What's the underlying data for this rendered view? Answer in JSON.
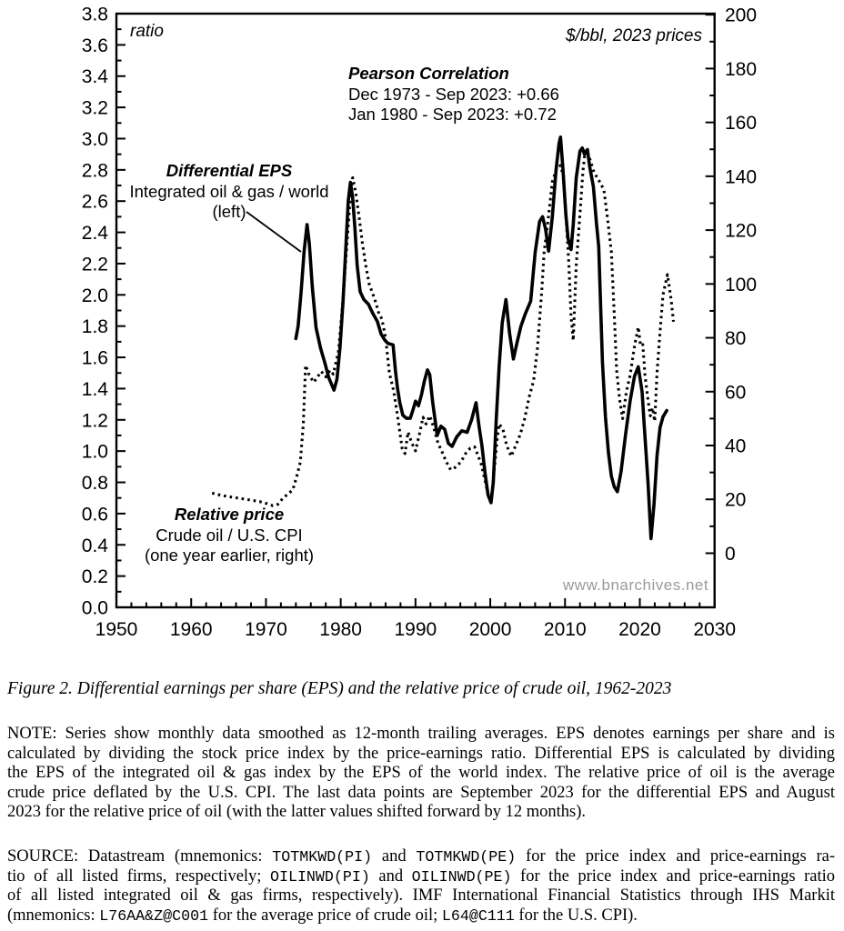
{
  "page": {
    "background": "#ffffff",
    "text_color": "#000000"
  },
  "chart_data": {
    "type": "line",
    "grid": false,
    "legend": "none",
    "x_axis": {
      "min": 1950,
      "max": 2030,
      "major_step": 10,
      "minor_step": 2,
      "tick_labels": [
        1950,
        1960,
        1970,
        1980,
        1990,
        2000,
        2010,
        2020,
        2030
      ]
    },
    "left_axis": {
      "unit_label": "ratio",
      "min": 0.0,
      "max": 3.8,
      "major_step": 0.2,
      "minor_step": 0.1,
      "tick_labels": [
        0.0,
        0.2,
        0.4,
        0.6,
        0.8,
        1.0,
        1.2,
        1.4,
        1.6,
        1.8,
        2.0,
        2.2,
        2.4,
        2.6,
        2.8,
        3.0,
        3.2,
        3.4,
        3.6,
        3.8
      ]
    },
    "right_axis": {
      "unit_label": "$/bbl, 2023 prices",
      "tick_min": 0,
      "tick_max": 200,
      "major_step": 20,
      "minor_step": 10,
      "tick_labels": [
        0,
        20,
        40,
        60,
        80,
        100,
        120,
        140,
        160,
        180,
        200
      ],
      "frame_min": -20.1,
      "frame_max": 200.4
    },
    "series": [
      {
        "name": "Differential EPS",
        "axis": "left",
        "line_style": "solid",
        "color": "#000000",
        "points": [
          [
            1974.0,
            1.72
          ],
          [
            1974.3,
            1.8
          ],
          [
            1974.7,
            2.02
          ],
          [
            1975.1,
            2.28
          ],
          [
            1975.5,
            2.45
          ],
          [
            1975.8,
            2.33
          ],
          [
            1976.2,
            2.05
          ],
          [
            1976.7,
            1.79
          ],
          [
            1977.3,
            1.66
          ],
          [
            1977.9,
            1.56
          ],
          [
            1978.4,
            1.47
          ],
          [
            1979.1,
            1.39
          ],
          [
            1979.5,
            1.46
          ],
          [
            1979.9,
            1.66
          ],
          [
            1980.3,
            1.95
          ],
          [
            1980.7,
            2.32
          ],
          [
            1981.0,
            2.6
          ],
          [
            1981.3,
            2.72
          ],
          [
            1981.6,
            2.62
          ],
          [
            1981.9,
            2.42
          ],
          [
            1982.2,
            2.19
          ],
          [
            1982.6,
            2.02
          ],
          [
            1983.1,
            1.97
          ],
          [
            1983.7,
            1.94
          ],
          [
            1984.3,
            1.88
          ],
          [
            1984.9,
            1.83
          ],
          [
            1985.4,
            1.75
          ],
          [
            1985.9,
            1.71
          ],
          [
            1986.3,
            1.69
          ],
          [
            1987.0,
            1.68
          ],
          [
            1987.3,
            1.52
          ],
          [
            1987.6,
            1.4
          ],
          [
            1987.9,
            1.31
          ],
          [
            1988.3,
            1.23
          ],
          [
            1988.8,
            1.21
          ],
          [
            1989.3,
            1.21
          ],
          [
            1989.7,
            1.27
          ],
          [
            1990.0,
            1.32
          ],
          [
            1990.4,
            1.29
          ],
          [
            1990.8,
            1.36
          ],
          [
            1991.2,
            1.45
          ],
          [
            1991.6,
            1.52
          ],
          [
            1991.9,
            1.49
          ],
          [
            1992.3,
            1.31
          ],
          [
            1992.9,
            1.1
          ],
          [
            1993.4,
            1.16
          ],
          [
            1993.9,
            1.14
          ],
          [
            1994.4,
            1.05
          ],
          [
            1994.9,
            1.03
          ],
          [
            1995.5,
            1.09
          ],
          [
            1996.2,
            1.13
          ],
          [
            1996.9,
            1.12
          ],
          [
            1997.5,
            1.2
          ],
          [
            1998.1,
            1.31
          ],
          [
            1998.5,
            1.16
          ],
          [
            1998.9,
            1.03
          ],
          [
            1999.3,
            0.86
          ],
          [
            1999.7,
            0.72
          ],
          [
            2000.1,
            0.67
          ],
          [
            2000.4,
            0.8
          ],
          [
            2000.8,
            1.2
          ],
          [
            2001.2,
            1.55
          ],
          [
            2001.6,
            1.82
          ],
          [
            2002.1,
            1.97
          ],
          [
            2002.6,
            1.75
          ],
          [
            2003.1,
            1.59
          ],
          [
            2003.6,
            1.7
          ],
          [
            2004.1,
            1.8
          ],
          [
            2004.7,
            1.88
          ],
          [
            2005.4,
            1.96
          ],
          [
            2006.0,
            2.27
          ],
          [
            2006.6,
            2.47
          ],
          [
            2007.0,
            2.5
          ],
          [
            2007.4,
            2.42
          ],
          [
            2007.8,
            2.28
          ],
          [
            2008.3,
            2.5
          ],
          [
            2008.8,
            2.8
          ],
          [
            2009.2,
            2.97
          ],
          [
            2009.4,
            3.01
          ],
          [
            2009.7,
            2.82
          ],
          [
            2010.1,
            2.52
          ],
          [
            2010.4,
            2.36
          ],
          [
            2010.8,
            2.29
          ],
          [
            2011.1,
            2.45
          ],
          [
            2011.5,
            2.75
          ],
          [
            2012.0,
            2.92
          ],
          [
            2012.3,
            2.94
          ],
          [
            2012.6,
            2.9
          ],
          [
            2013.0,
            2.93
          ],
          [
            2013.3,
            2.82
          ],
          [
            2013.8,
            2.69
          ],
          [
            2014.2,
            2.46
          ],
          [
            2014.5,
            2.31
          ],
          [
            2015.0,
            1.57
          ],
          [
            2015.4,
            1.22
          ],
          [
            2015.8,
            0.99
          ],
          [
            2016.2,
            0.84
          ],
          [
            2016.6,
            0.77
          ],
          [
            2017.0,
            0.74
          ],
          [
            2017.5,
            0.87
          ],
          [
            2018.1,
            1.11
          ],
          [
            2018.7,
            1.32
          ],
          [
            2019.3,
            1.48
          ],
          [
            2019.8,
            1.54
          ],
          [
            2020.3,
            1.38
          ],
          [
            2020.6,
            1.16
          ],
          [
            2021.1,
            0.8
          ],
          [
            2021.5,
            0.44
          ],
          [
            2021.9,
            0.66
          ],
          [
            2022.3,
            0.97
          ],
          [
            2022.7,
            1.15
          ],
          [
            2023.1,
            1.22
          ],
          [
            2023.6,
            1.26
          ]
        ]
      },
      {
        "name": "Relative price",
        "axis": "right",
        "line_style": "dotted",
        "color": "#000000",
        "points": [
          [
            1962.8,
            22.3
          ],
          [
            1964.0,
            21.5
          ],
          [
            1965.5,
            20.8
          ],
          [
            1966.7,
            20.3
          ],
          [
            1968.0,
            19.7
          ],
          [
            1969.5,
            19.0
          ],
          [
            1970.9,
            17.7
          ],
          [
            1971.6,
            18.2
          ],
          [
            1972.4,
            20.9
          ],
          [
            1972.8,
            21.6
          ],
          [
            1973.6,
            23.6
          ],
          [
            1974.2,
            29.4
          ],
          [
            1974.6,
            33.8
          ],
          [
            1975.0,
            48.0
          ],
          [
            1975.3,
            69.8
          ],
          [
            1975.8,
            66.0
          ],
          [
            1976.4,
            63.5
          ],
          [
            1977.4,
            67.5
          ],
          [
            1978.0,
            65.5
          ],
          [
            1978.6,
            68.0
          ],
          [
            1979.0,
            66.5
          ],
          [
            1979.7,
            75.0
          ],
          [
            1980.3,
            94.0
          ],
          [
            1980.7,
            110.0
          ],
          [
            1981.2,
            129.0
          ],
          [
            1981.6,
            139.5
          ],
          [
            1982.0,
            134.0
          ],
          [
            1982.5,
            124.0
          ],
          [
            1982.9,
            115.0
          ],
          [
            1983.4,
            106.0
          ],
          [
            1983.8,
            100.0
          ],
          [
            1984.2,
            97.0
          ],
          [
            1984.7,
            93.0
          ],
          [
            1985.1,
            89.0
          ],
          [
            1985.5,
            87.0
          ],
          [
            1986.0,
            80.0
          ],
          [
            1986.5,
            67.0
          ],
          [
            1987.1,
            60.0
          ],
          [
            1987.6,
            51.0
          ],
          [
            1988.2,
            39.0
          ],
          [
            1988.6,
            37.0
          ],
          [
            1989.0,
            45.0
          ],
          [
            1989.5,
            41.0
          ],
          [
            1990.0,
            38.0
          ],
          [
            1990.5,
            44.0
          ],
          [
            1991.0,
            50.5
          ],
          [
            1991.4,
            48.0
          ],
          [
            1991.9,
            51.0
          ],
          [
            1992.4,
            47.0
          ],
          [
            1993.0,
            41.0
          ],
          [
            1993.5,
            38.0
          ],
          [
            1994.1,
            34.0
          ],
          [
            1994.7,
            31.0
          ],
          [
            1995.4,
            32.0
          ],
          [
            1996.1,
            34.0
          ],
          [
            1996.7,
            37.0
          ],
          [
            1997.3,
            39.0
          ],
          [
            1997.9,
            39.5
          ],
          [
            1998.4,
            36.0
          ],
          [
            1998.8,
            33.0
          ],
          [
            1999.3,
            27.0
          ],
          [
            1999.8,
            21.0
          ],
          [
            2000.1,
            19.0
          ],
          [
            2000.5,
            30.0
          ],
          [
            2000.9,
            42.0
          ],
          [
            2001.2,
            48.0
          ],
          [
            2001.7,
            46.0
          ],
          [
            2002.2,
            40.0
          ],
          [
            2002.8,
            36.0
          ],
          [
            2003.4,
            40.0
          ],
          [
            2004.0,
            44.0
          ],
          [
            2004.6,
            50.0
          ],
          [
            2005.2,
            58.0
          ],
          [
            2005.8,
            64.0
          ],
          [
            2006.3,
            76.0
          ],
          [
            2006.9,
            98.0
          ],
          [
            2007.2,
            112.0
          ],
          [
            2007.7,
            123.0
          ],
          [
            2008.3,
            138.0
          ],
          [
            2008.9,
            143.0
          ],
          [
            2009.4,
            144.0
          ],
          [
            2009.8,
            140.0
          ],
          [
            2010.2,
            122.0
          ],
          [
            2010.5,
            108.0
          ],
          [
            2010.8,
            88.0
          ],
          [
            2011.1,
            79.0
          ],
          [
            2011.5,
            107.0
          ],
          [
            2012.0,
            126.0
          ],
          [
            2012.4,
            142.0
          ],
          [
            2012.7,
            149.8
          ],
          [
            2013.0,
            149.0
          ],
          [
            2013.4,
            145.7
          ],
          [
            2013.9,
            141.3
          ],
          [
            2014.5,
            138.6
          ],
          [
            2015.2,
            135.0
          ],
          [
            2015.7,
            124.0
          ],
          [
            2016.2,
            112.0
          ],
          [
            2016.6,
            88.0
          ],
          [
            2016.9,
            68.0
          ],
          [
            2017.3,
            57.0
          ],
          [
            2017.7,
            50.0
          ],
          [
            2018.2,
            60.0
          ],
          [
            2018.7,
            66.0
          ],
          [
            2019.3,
            77.0
          ],
          [
            2019.8,
            84.0
          ],
          [
            2020.1,
            77.0
          ],
          [
            2020.4,
            77.5
          ],
          [
            2020.7,
            66.0
          ],
          [
            2021.1,
            57.0
          ],
          [
            2021.4,
            51.0
          ],
          [
            2021.7,
            54.0
          ],
          [
            2022.0,
            49.0
          ],
          [
            2022.3,
            67.0
          ],
          [
            2022.7,
            82.0
          ],
          [
            2023.1,
            96.0
          ],
          [
            2023.7,
            103.5
          ],
          [
            2024.2,
            94.0
          ],
          [
            2024.5,
            86.0
          ]
        ]
      }
    ],
    "annotations": {
      "pearson": {
        "title": "Pearson Correlation",
        "line1": "Dec 1973 - Sep 2023: +0.66",
        "line2": "Jan 1980 - Sep 2023: +0.72"
      },
      "series1_label": {
        "title": "Differential EPS",
        "line1": "Integrated oil & gas / world",
        "line2": "(left)"
      },
      "series2_label": {
        "title": "Relative price",
        "line1": "Crude oil / U.S. CPI",
        "line2": "(one year earlier, right)"
      },
      "watermark": "www.bnarchives.net",
      "watermark_color": "#9a9a9a"
    }
  },
  "caption": "Figure 2. Differential earnings per share (EPS) and the relative price of crude oil, 1962-2023",
  "note": {
    "lines": [
      "NOTE: Series show monthly data smoothed as 12-month trailing averages. EPS denotes earnings per share and is",
      "calculated by dividing the stock price index by the price-earnings ratio. Differential EPS is calculated by dividing",
      "the EPS of the integrated oil & gas index by the EPS of the world index. The relative price of oil is the average",
      "crude price deflated by the U.S. CPI. The last data points are September 2023 for the differential EPS and August",
      "2023 for the relative price of oil (with the latter values shifted forward by 12 months)."
    ]
  },
  "source": {
    "lines": [
      [
        {
          "t": "SOURCE: Datastream (mnemonics: "
        },
        {
          "t": "TOTMKWD(PI)",
          "m": true
        },
        {
          "t": " and "
        },
        {
          "t": "TOTMKWD(PE)",
          "m": true
        },
        {
          "t": " for the price index and price-earnings ra-"
        }
      ],
      [
        {
          "t": "tio of all listed firms, respectively; "
        },
        {
          "t": "OILINWD(PI)",
          "m": true
        },
        {
          "t": " and "
        },
        {
          "t": "OILINWD(PE)",
          "m": true
        },
        {
          "t": " for the price index and price-earnings ratio"
        }
      ],
      [
        {
          "t": "of all listed integrated oil & gas firms, respectively). IMF International Financial Statistics through IHS Markit"
        }
      ],
      [
        {
          "t": "(mnemonics: "
        },
        {
          "t": "L76AA&Z@C001",
          "m": true
        },
        {
          "t": " for the average price of crude oil; "
        },
        {
          "t": "L64@C111",
          "m": true
        },
        {
          "t": " for the U.S. CPI)."
        }
      ]
    ]
  }
}
